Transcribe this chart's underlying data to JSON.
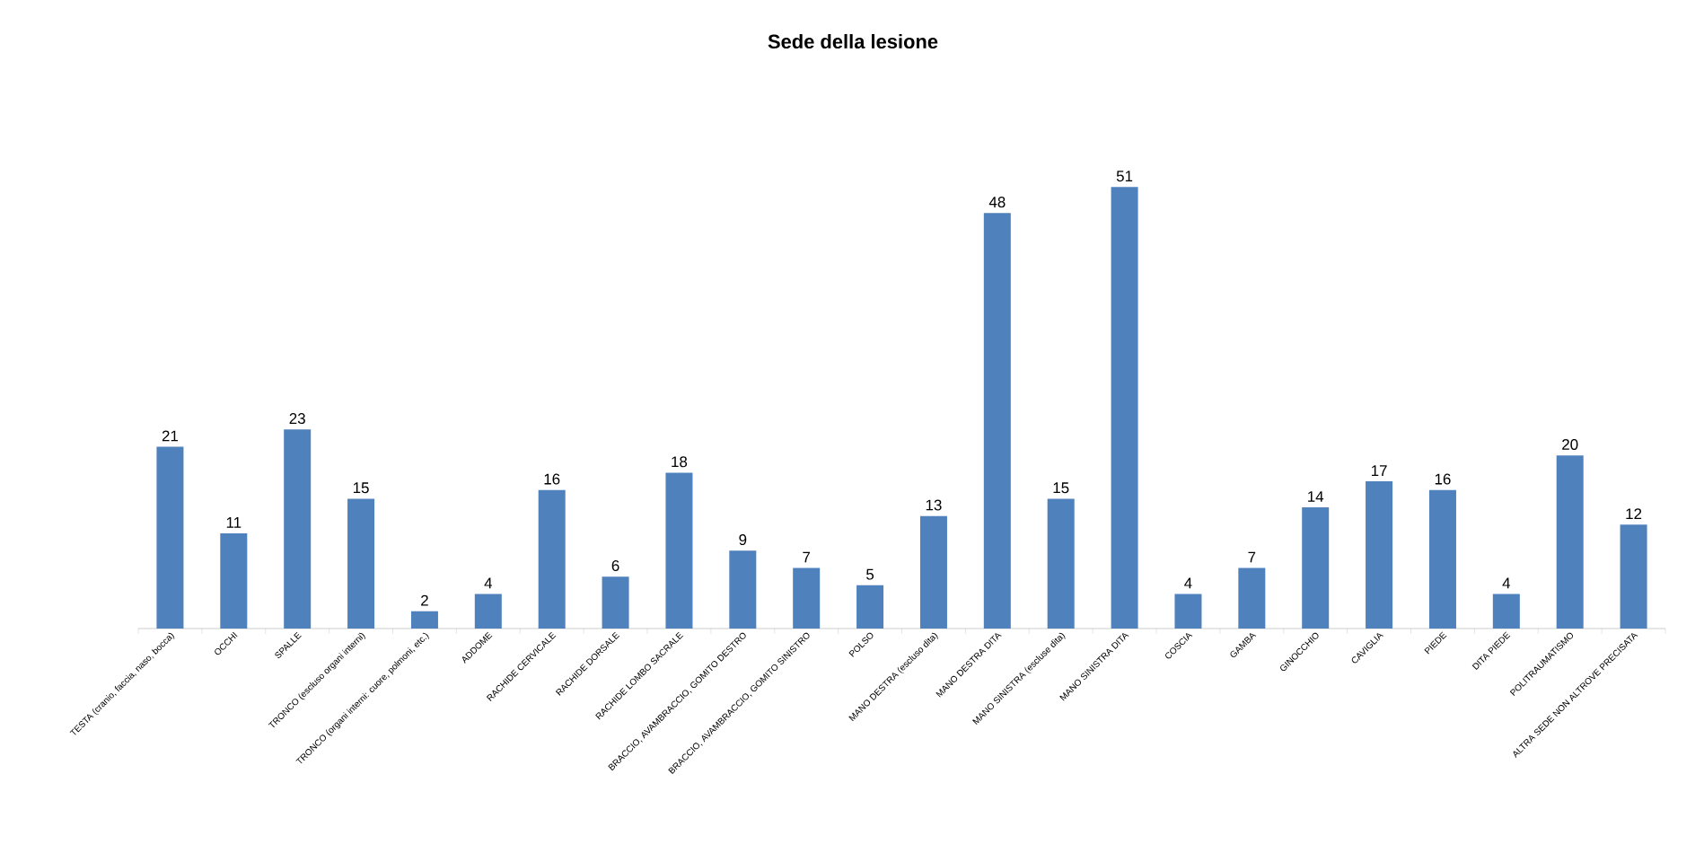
{
  "chart_data": {
    "type": "bar",
    "title": "Sede della lesione",
    "categories": [
      "TESTA (cranio, faccia, naso, bocca)",
      "OCCHI",
      "SPALLE",
      "TRONCO (escluso organi interni)",
      "TRONCO (organi interni: cuore, polmoni, etc.)",
      "ADDOME",
      "RACHIDE CERVICALE",
      "RACHIDE DORSALE",
      "RACHIDE LOMBO SACRALE",
      "BRACCIO, AVAMBRACCIO, GOMITO DESTRO",
      "BRACCIO, AVAMBRACCIO, GOMITO SINISTRO",
      "POLSO",
      "MANO DESTRA (escluso dita)",
      "MANO DESTRA DITA",
      "MANO SINISTRA (escluse dita)",
      "MANO SINISTRA DITA",
      "COSCIA",
      "GAMBA",
      "GINOCCHIO",
      "CAVIGLIA",
      "PIEDE",
      "DITA PIEDE",
      "POLITRAUMATISMO",
      "ALTRA SEDE NON ALTROVE PRECISATA"
    ],
    "values": [
      21,
      11,
      23,
      15,
      2,
      4,
      16,
      6,
      18,
      9,
      7,
      5,
      13,
      48,
      15,
      51,
      4,
      7,
      14,
      17,
      16,
      4,
      20,
      12
    ],
    "color": "#4f81bd",
    "data_labels": true
  }
}
